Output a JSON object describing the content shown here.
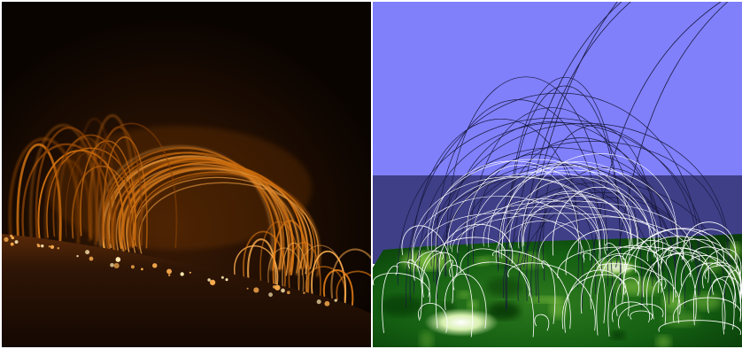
{
  "figure": {
    "left_panel": {
      "colors": {
        "sky": "#0a0401",
        "loop_bright": "#ffb050",
        "loop_mid": "#e07a14",
        "loop_dim": "#8a4206",
        "surface": "#2a1304"
      }
    },
    "right_panel": {
      "colors": {
        "sky_top": "#8080fb",
        "sky_bottom": "#3f3f88",
        "ground": "#0f5a0f",
        "ground_light": "#7fbf3f",
        "field_line_upper": "#1a1a40",
        "field_line_lower": "#ffffff"
      }
    }
  }
}
